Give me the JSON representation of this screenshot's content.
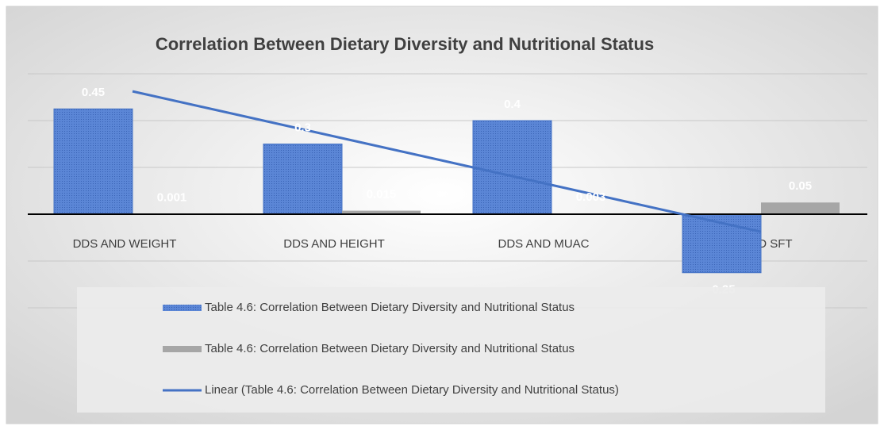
{
  "chart_data": {
    "type": "bar",
    "title": "Correlation Between Dietary Diversity and Nutritional Status",
    "categories": [
      "DDS AND WEIGHT",
      "DDS AND HEIGHT",
      "DDS AND MUAC",
      "DDS AND SFT"
    ],
    "series": [
      {
        "name": "Table 4.6: Correlation Between Dietary Diversity and Nutritional Status",
        "color": "#4a76c9",
        "values": [
          0.45,
          0.3,
          0.4,
          -0.25
        ]
      },
      {
        "name": "Table 4.6: Correlation Between Dietary Diversity and Nutritional Status",
        "color": "#a6a6a6",
        "values": [
          0.001,
          0.015,
          0.003,
          0.05
        ]
      },
      {
        "name": "Linear (Table 4.6: Correlation Between Dietary Diversity and Nutritional Status)",
        "color": "#4472c4",
        "type": "line",
        "values": [
          0.525,
          0.325,
          0.125,
          -0.075
        ]
      }
    ],
    "ylim": [
      -0.4,
      0.6
    ],
    "yticks": [
      -0.4,
      -0.2,
      0,
      0.2,
      0.4,
      0.6
    ],
    "grid": true
  }
}
